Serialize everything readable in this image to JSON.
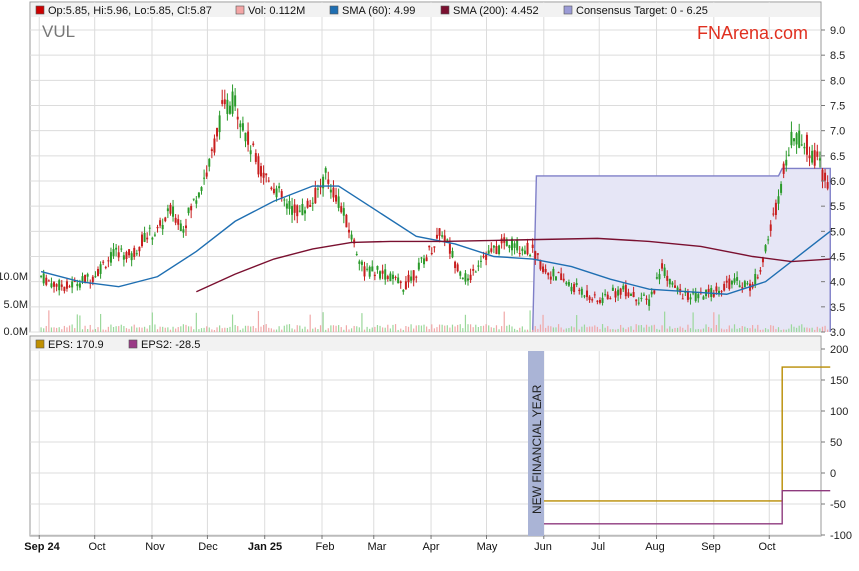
{
  "ticker": "VUL",
  "brand": "FNArena.com",
  "legend_top": [
    {
      "label": "Op:5.85, Hi:5.96, Lo:5.85, Cl:5.87",
      "color": "#cc0000"
    },
    {
      "label": "Vol: 0.112M",
      "color": "#f4a6a6"
    },
    {
      "label": "SMA (60): 4.99",
      "color": "#1f6fb2"
    },
    {
      "label": "SMA (200): 4.452",
      "color": "#7a1030"
    },
    {
      "label": "Consensus Target: 0 - 6.25",
      "color": "#9b9bd6"
    }
  ],
  "legend_bottom": [
    {
      "label": "EPS: 170.9",
      "color": "#c09000"
    },
    {
      "label": "EPS2: -28.5",
      "color": "#9a3a86"
    }
  ],
  "annotation": "NEW FINANCIAL YEAR",
  "colors": {
    "up": "#2a9a2a",
    "down": "#c81e1e",
    "sma60": "#1f6fb2",
    "sma200": "#7a1030",
    "target_fill": "#e6e6f6",
    "target_line": "#7f7fc8",
    "eps": "#b88c00",
    "eps2": "#8e3a7e",
    "band": "#aab4d6",
    "brand": "#e03020",
    "grid": "#dcdcdc"
  },
  "chart_data": [
    {
      "type": "candlestick",
      "title": "VUL",
      "ylim": [
        3.0,
        9.0
      ],
      "y_ticks": [
        "3.0",
        "3.5",
        "4.0",
        "4.5",
        "5.0",
        "5.5",
        "6.0",
        "6.5",
        "7.0",
        "7.5",
        "8.0",
        "8.5",
        "9.0"
      ],
      "x_ticks": [
        "Sep 24",
        "Oct",
        "Nov",
        "Dec",
        "Jan 25",
        "Feb",
        "Mar",
        "Apr",
        "May",
        "Jun",
        "Jul",
        "Aug",
        "Sep",
        "Oct"
      ],
      "close_series": [
        [
          "2024-09-02",
          4.1
        ],
        [
          "2024-09-09",
          3.95
        ],
        [
          "2024-09-16",
          3.9
        ],
        [
          "2024-09-23",
          4.0
        ],
        [
          "2024-09-30",
          4.1
        ],
        [
          "2024-10-07",
          4.4
        ],
        [
          "2024-10-14",
          4.6
        ],
        [
          "2024-10-21",
          4.5
        ],
        [
          "2024-10-28",
          4.9
        ],
        [
          "2024-11-04",
          5.0
        ],
        [
          "2024-11-11",
          5.4
        ],
        [
          "2024-11-18",
          5.1
        ],
        [
          "2024-11-25",
          5.7
        ],
        [
          "2024-12-02",
          6.3
        ],
        [
          "2024-12-09",
          7.4
        ],
        [
          "2024-12-16",
          7.6
        ],
        [
          "2024-12-23",
          6.8
        ],
        [
          "2024-12-30",
          6.2
        ],
        [
          "2025-01-06",
          5.9
        ],
        [
          "2025-01-13",
          5.5
        ],
        [
          "2025-01-20",
          5.4
        ],
        [
          "2025-01-27",
          5.6
        ],
        [
          "2025-02-03",
          6.1
        ],
        [
          "2025-02-10",
          5.6
        ],
        [
          "2025-02-17",
          4.9
        ],
        [
          "2025-02-24",
          4.2
        ],
        [
          "2025-03-03",
          4.2
        ],
        [
          "2025-03-10",
          4.1
        ],
        [
          "2025-03-17",
          3.9
        ],
        [
          "2025-03-24",
          4.2
        ],
        [
          "2025-03-31",
          4.6
        ],
        [
          "2025-04-07",
          5.0
        ],
        [
          "2025-04-14",
          4.4
        ],
        [
          "2025-04-21",
          4.0
        ],
        [
          "2025-04-28",
          4.5
        ],
        [
          "2025-05-05",
          4.6
        ],
        [
          "2025-05-12",
          4.8
        ],
        [
          "2025-05-19",
          4.7
        ],
        [
          "2025-05-26",
          4.6
        ],
        [
          "2025-06-02",
          4.2
        ],
        [
          "2025-06-09",
          4.1
        ],
        [
          "2025-06-16",
          3.9
        ],
        [
          "2025-06-23",
          3.8
        ],
        [
          "2025-06-30",
          3.6
        ],
        [
          "2025-07-07",
          3.75
        ],
        [
          "2025-07-14",
          3.85
        ],
        [
          "2025-07-21",
          3.7
        ],
        [
          "2025-07-28",
          3.6
        ],
        [
          "2025-08-04",
          4.3
        ],
        [
          "2025-08-11",
          3.85
        ],
        [
          "2025-08-18",
          3.7
        ],
        [
          "2025-08-25",
          3.7
        ],
        [
          "2025-09-01",
          3.8
        ],
        [
          "2025-09-08",
          3.95
        ],
        [
          "2025-09-15",
          4.0
        ],
        [
          "2025-09-22",
          3.9
        ],
        [
          "2025-09-29",
          4.6
        ],
        [
          "2025-10-06",
          5.7
        ],
        [
          "2025-10-13",
          6.9
        ],
        [
          "2025-10-20",
          6.8
        ],
        [
          "2025-10-27",
          6.4
        ],
        [
          "2025-11-03",
          5.87
        ]
      ],
      "sma60": [
        [
          "2024-09-02",
          4.2
        ],
        [
          "2024-09-23",
          4.0
        ],
        [
          "2024-10-14",
          3.9
        ],
        [
          "2024-11-04",
          4.1
        ],
        [
          "2024-11-25",
          4.6
        ],
        [
          "2024-12-16",
          5.2
        ],
        [
          "2025-01-06",
          5.6
        ],
        [
          "2025-01-27",
          5.9
        ],
        [
          "2025-02-10",
          5.9
        ],
        [
          "2025-03-03",
          5.4
        ],
        [
          "2025-03-24",
          4.9
        ],
        [
          "2025-04-14",
          4.75
        ],
        [
          "2025-05-05",
          4.5
        ],
        [
          "2025-05-26",
          4.45
        ],
        [
          "2025-06-16",
          4.3
        ],
        [
          "2025-07-07",
          4.05
        ],
        [
          "2025-07-28",
          3.85
        ],
        [
          "2025-08-18",
          3.8
        ],
        [
          "2025-09-08",
          3.75
        ],
        [
          "2025-09-29",
          4.0
        ],
        [
          "2025-10-20",
          4.6
        ],
        [
          "2025-11-03",
          5.0
        ]
      ],
      "sma200": [
        [
          "2024-11-25",
          3.8
        ],
        [
          "2024-12-16",
          4.15
        ],
        [
          "2025-01-06",
          4.45
        ],
        [
          "2025-01-27",
          4.65
        ],
        [
          "2025-02-17",
          4.78
        ],
        [
          "2025-03-10",
          4.8
        ],
        [
          "2025-04-07",
          4.8
        ],
        [
          "2025-05-05",
          4.82
        ],
        [
          "2025-06-02",
          4.84
        ],
        [
          "2025-06-30",
          4.86
        ],
        [
          "2025-07-28",
          4.8
        ],
        [
          "2025-08-25",
          4.7
        ],
        [
          "2025-09-22",
          4.5
        ],
        [
          "2025-10-13",
          4.4
        ],
        [
          "2025-11-03",
          4.45
        ]
      ],
      "consensus_target": [
        [
          "2025-05-26",
          0
        ],
        [
          "2025-05-28",
          6.1
        ],
        [
          "2025-10-06",
          6.1
        ],
        [
          "2025-10-08",
          6.25
        ],
        [
          "2025-11-03",
          6.25
        ]
      ],
      "volume_axis": {
        "ticks": [
          "0.0M",
          "5.0M",
          "10.0M"
        ]
      }
    },
    {
      "type": "step",
      "ylim": [
        -100,
        200
      ],
      "y_ticks": [
        "-100",
        "-50",
        "0",
        "50",
        "100",
        "150",
        "200"
      ],
      "series": [
        {
          "name": "EPS",
          "points": [
            [
              "2025-05-26",
              -45
            ],
            [
              "2025-10-08",
              -45
            ],
            [
              "2025-10-08",
              170.9
            ],
            [
              "2025-11-03",
              170.9
            ]
          ]
        },
        {
          "name": "EPS2",
          "points": [
            [
              "2025-05-26",
              -82
            ],
            [
              "2025-10-08",
              -82
            ],
            [
              "2025-10-08",
              -28.5
            ],
            [
              "2025-11-03",
              -28.5
            ]
          ]
        }
      ]
    }
  ]
}
